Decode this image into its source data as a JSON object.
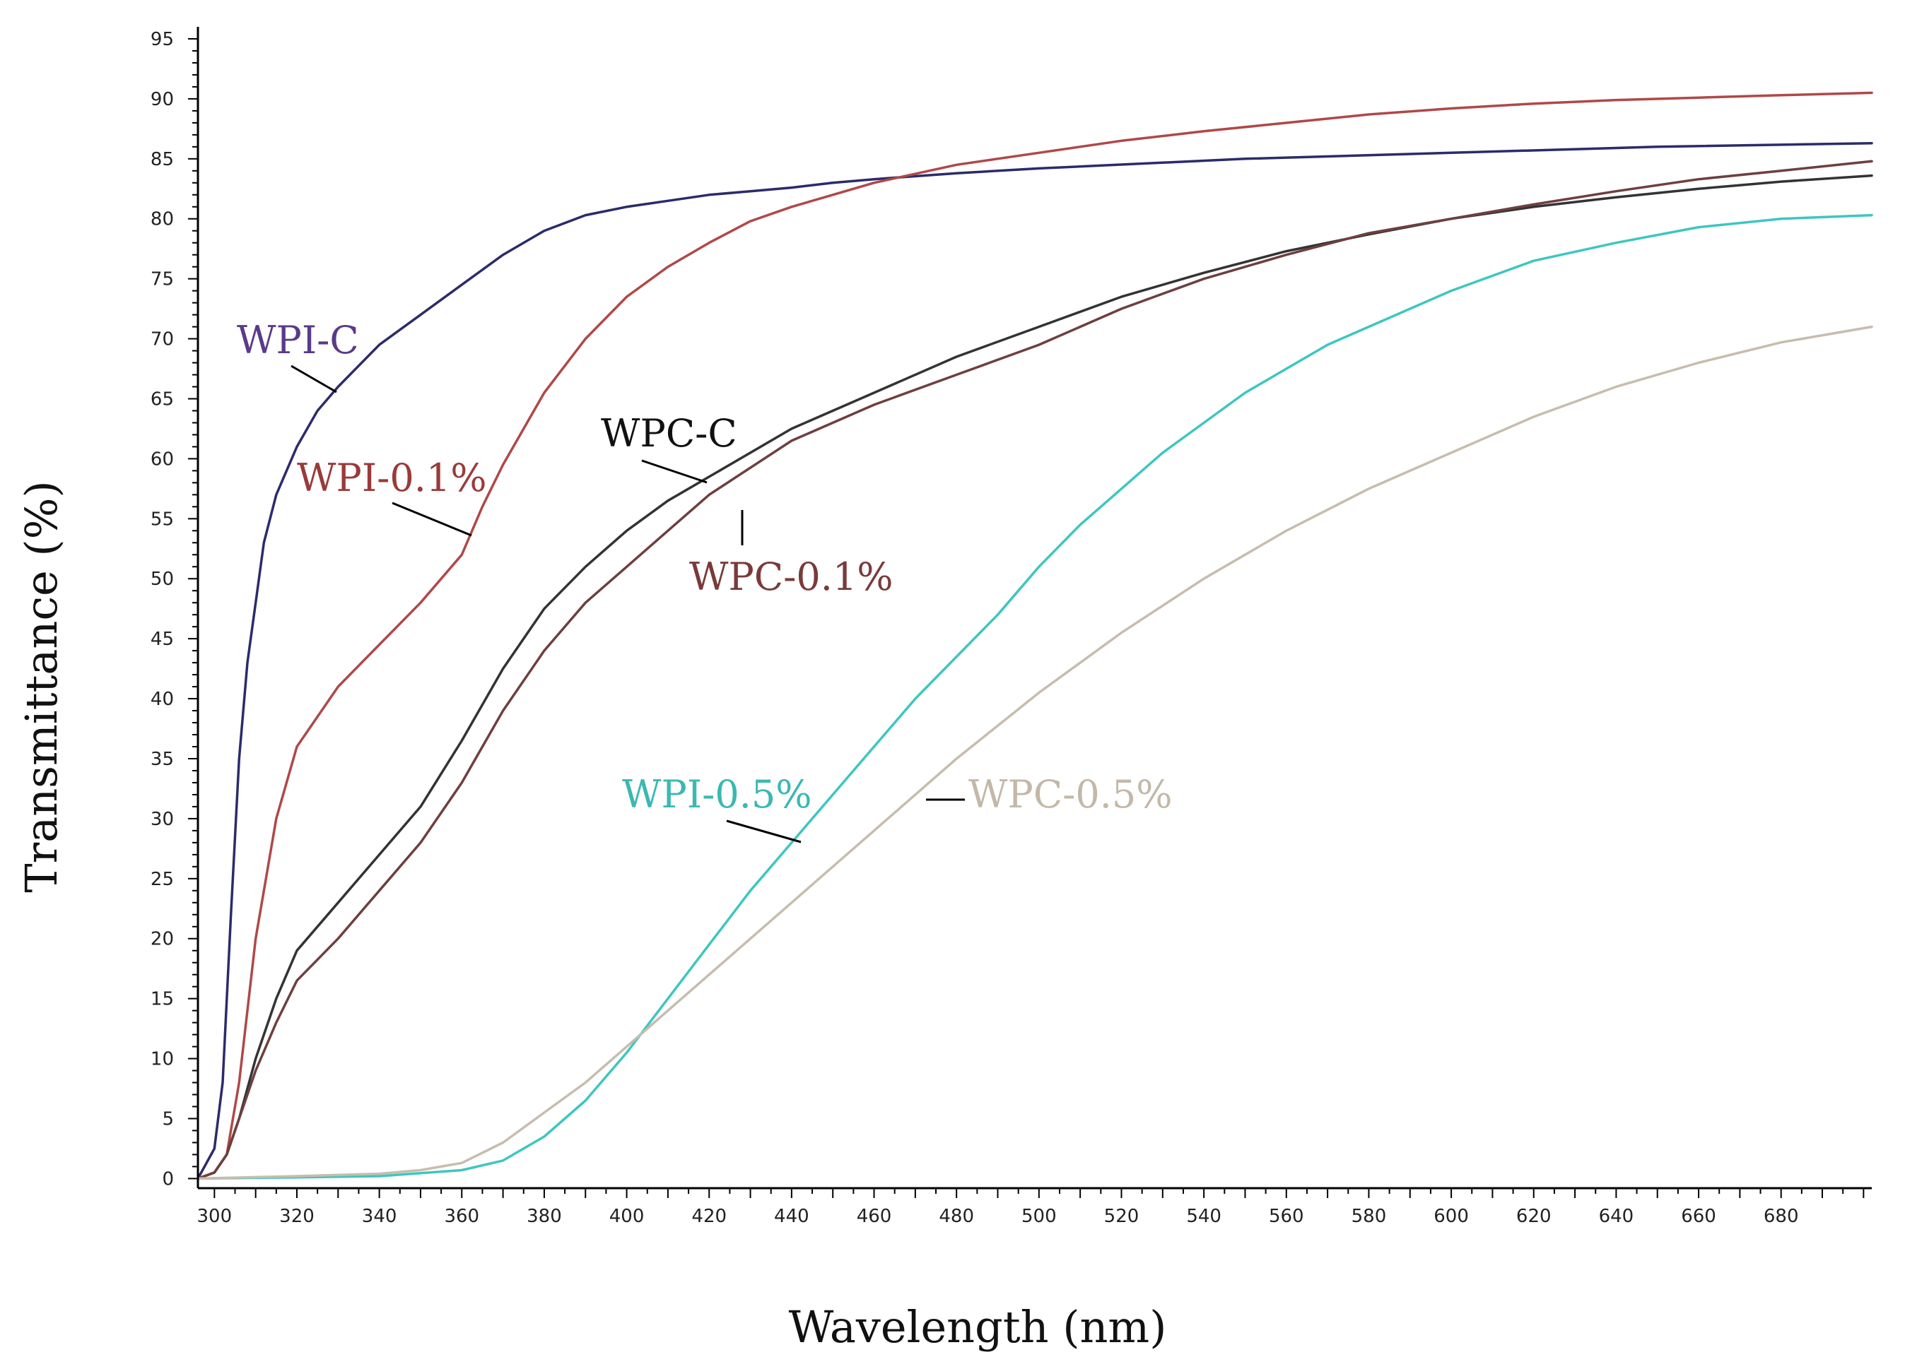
{
  "chart_data": {
    "type": "line",
    "title": "",
    "xlabel": "Wavelength (nm)",
    "ylabel": "Transmittance (%)",
    "xlim": [
      296,
      702
    ],
    "ylim": [
      -0.8,
      96
    ],
    "x_ticks": [
      300,
      320,
      340,
      360,
      380,
      400,
      420,
      440,
      460,
      480,
      500,
      520,
      540,
      560,
      580,
      600,
      620,
      640,
      660,
      680
    ],
    "y_ticks": [
      0,
      5,
      10,
      15,
      20,
      25,
      30,
      35,
      40,
      45,
      50,
      55,
      60,
      65,
      70,
      75,
      80,
      85,
      90,
      95
    ],
    "x_minor_step": 5,
    "y_minor_step": 1,
    "grid": false,
    "series": [
      {
        "name": "WPI-C",
        "color": "#2b2b6b",
        "label_color": "#5a3a8a",
        "x": [
          296,
          300,
          302,
          304,
          306,
          308,
          310,
          312,
          315,
          320,
          325,
          330,
          340,
          350,
          360,
          370,
          380,
          390,
          400,
          410,
          420,
          430,
          440,
          450,
          460,
          480,
          500,
          550,
          600,
          650,
          702
        ],
        "y": [
          0,
          2.5,
          8,
          22,
          35,
          43,
          48,
          53,
          57,
          61,
          64,
          66,
          69.5,
          72,
          74.5,
          77,
          79,
          80.3,
          81,
          81.5,
          82,
          82.3,
          82.6,
          83,
          83.3,
          83.8,
          84.2,
          85,
          85.5,
          86,
          86.3
        ]
      },
      {
        "name": "WPI-0.1%",
        "color": "#b04848",
        "label_color": "#9a3a3a",
        "x": [
          296,
          300,
          303,
          306,
          310,
          315,
          320,
          330,
          340,
          350,
          360,
          365,
          370,
          380,
          390,
          400,
          410,
          420,
          430,
          440,
          450,
          460,
          480,
          500,
          520,
          540,
          560,
          580,
          600,
          620,
          640,
          660,
          680,
          702
        ],
        "y": [
          0,
          0.5,
          2,
          8,
          20,
          30,
          36,
          41,
          44.5,
          48,
          52,
          56,
          59.5,
          65.5,
          70,
          73.5,
          76,
          78,
          79.8,
          81,
          82,
          83,
          84.5,
          85.5,
          86.5,
          87.3,
          88,
          88.7,
          89.2,
          89.6,
          89.9,
          90.1,
          90.3,
          90.5
        ]
      },
      {
        "name": "WPC-C",
        "color": "#333333",
        "label_color": "#111111",
        "x": [
          296,
          300,
          303,
          306,
          310,
          315,
          320,
          330,
          340,
          350,
          360,
          370,
          380,
          390,
          400,
          410,
          420,
          440,
          460,
          480,
          500,
          520,
          540,
          560,
          580,
          600,
          620,
          640,
          660,
          680,
          702
        ],
        "y": [
          0,
          0.5,
          2,
          5,
          10,
          15,
          19,
          23,
          27,
          31,
          36.5,
          42.5,
          47.5,
          51,
          54,
          56.5,
          58.5,
          62.5,
          65.5,
          68.5,
          71,
          73.5,
          75.5,
          77.3,
          78.7,
          80,
          81,
          81.8,
          82.5,
          83.1,
          83.6
        ]
      },
      {
        "name": "WPC-0.1%",
        "color": "#6e3f3f",
        "label_color": "#7a3a3a",
        "x": [
          296,
          300,
          303,
          306,
          310,
          315,
          320,
          330,
          340,
          350,
          360,
          370,
          380,
          390,
          400,
          410,
          420,
          440,
          460,
          480,
          500,
          520,
          540,
          560,
          580,
          600,
          620,
          640,
          660,
          680,
          702
        ],
        "y": [
          0,
          0.5,
          2,
          5,
          9,
          13,
          16.5,
          20,
          24,
          28,
          33,
          39,
          44,
          48,
          51,
          54,
          57,
          61.5,
          64.5,
          67,
          69.5,
          72.5,
          75,
          77,
          78.8,
          80,
          81.2,
          82.3,
          83.3,
          84,
          84.8
        ]
      },
      {
        "name": "WPI-0.5%",
        "color": "#3ec6c0",
        "label_color": "#3ab8b2",
        "x": [
          296,
          320,
          340,
          360,
          370,
          380,
          390,
          400,
          410,
          420,
          430,
          440,
          450,
          460,
          470,
          480,
          490,
          500,
          510,
          520,
          530,
          540,
          550,
          560,
          570,
          580,
          600,
          620,
          640,
          660,
          680,
          702
        ],
        "y": [
          0,
          0.1,
          0.2,
          0.7,
          1.5,
          3.5,
          6.5,
          10.5,
          15,
          19.5,
          24,
          28,
          32,
          36,
          40,
          43.5,
          47,
          51,
          54.5,
          57.5,
          60.5,
          63,
          65.5,
          67.5,
          69.5,
          71,
          74,
          76.5,
          78,
          79.3,
          80,
          80.3
        ]
      },
      {
        "name": "WPC-0.5%",
        "color": "#c6bdae",
        "label_color": "#c3b8a8",
        "x": [
          296,
          320,
          340,
          350,
          360,
          370,
          380,
          390,
          400,
          410,
          420,
          440,
          460,
          480,
          500,
          520,
          540,
          560,
          580,
          600,
          620,
          640,
          660,
          680,
          702
        ],
        "y": [
          0,
          0.2,
          0.4,
          0.7,
          1.3,
          3,
          5.5,
          8,
          11,
          14,
          17,
          23,
          29,
          35,
          40.5,
          45.5,
          50,
          54,
          57.5,
          60.5,
          63.5,
          66,
          68,
          69.7,
          71
        ]
      }
    ]
  }
}
